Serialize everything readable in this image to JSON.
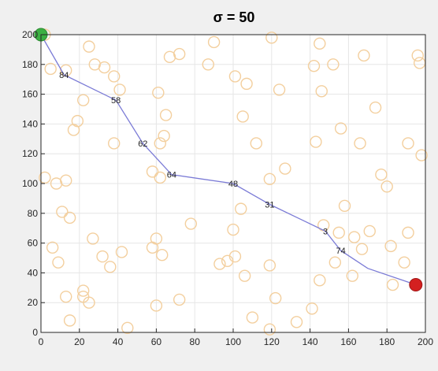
{
  "chart_data": {
    "type": "scatter",
    "title": "σ = 50",
    "xlabel": "",
    "ylabel": "",
    "xlim": [
      0,
      200
    ],
    "ylim": [
      0,
      200
    ],
    "x_ticks": [
      0,
      20,
      40,
      60,
      80,
      100,
      120,
      140,
      160,
      180,
      200
    ],
    "y_ticks": [
      0,
      20,
      40,
      60,
      80,
      100,
      120,
      140,
      160,
      180,
      200
    ],
    "grid": true,
    "colors": {
      "background_points": "#f3cf9e",
      "path_line": "#7b7bd6",
      "start_point": "#3cb043",
      "end_point": "#d42020",
      "grid": "#e6e6e6"
    },
    "background_points": [
      [
        2,
        200
      ],
      [
        5,
        177
      ],
      [
        13,
        176
      ],
      [
        25,
        192
      ],
      [
        28,
        180
      ],
      [
        33,
        178
      ],
      [
        38,
        172
      ],
      [
        41,
        163
      ],
      [
        90,
        195
      ],
      [
        120,
        198
      ],
      [
        145,
        194
      ],
      [
        168,
        186
      ],
      [
        196,
        186
      ],
      [
        197,
        181
      ],
      [
        67,
        185
      ],
      [
        72,
        187
      ],
      [
        87,
        180
      ],
      [
        101,
        172
      ],
      [
        107,
        167
      ],
      [
        124,
        163
      ],
      [
        146,
        162
      ],
      [
        152,
        180
      ],
      [
        142,
        179
      ],
      [
        22,
        156
      ],
      [
        61,
        161
      ],
      [
        105,
        145
      ],
      [
        174,
        151
      ],
      [
        19,
        142
      ],
      [
        17,
        136
      ],
      [
        38,
        127
      ],
      [
        65,
        146
      ],
      [
        64,
        132
      ],
      [
        62,
        127
      ],
      [
        112,
        127
      ],
      [
        143,
        128
      ],
      [
        156,
        137
      ],
      [
        166,
        127
      ],
      [
        191,
        127
      ],
      [
        198,
        119
      ],
      [
        2,
        104
      ],
      [
        8,
        100
      ],
      [
        13,
        102
      ],
      [
        58,
        108
      ],
      [
        62,
        104
      ],
      [
        119,
        103
      ],
      [
        127,
        110
      ],
      [
        177,
        106
      ],
      [
        180,
        98
      ],
      [
        11,
        81
      ],
      [
        15,
        77
      ],
      [
        78,
        73
      ],
      [
        104,
        83
      ],
      [
        147,
        72
      ],
      [
        158,
        85
      ],
      [
        6,
        57
      ],
      [
        9,
        47
      ],
      [
        27,
        63
      ],
      [
        32,
        51
      ],
      [
        36,
        44
      ],
      [
        42,
        54
      ],
      [
        58,
        57
      ],
      [
        60,
        63
      ],
      [
        63,
        52
      ],
      [
        100,
        69
      ],
      [
        93,
        46
      ],
      [
        97,
        48
      ],
      [
        101,
        51
      ],
      [
        106,
        38
      ],
      [
        119,
        45
      ],
      [
        155,
        67
      ],
      [
        163,
        64
      ],
      [
        167,
        56
      ],
      [
        171,
        68
      ],
      [
        182,
        58
      ],
      [
        189,
        47
      ],
      [
        191,
        67
      ],
      [
        22,
        24
      ],
      [
        22,
        28
      ],
      [
        13,
        24
      ],
      [
        15,
        8
      ],
      [
        25,
        20
      ],
      [
        45,
        3
      ],
      [
        60,
        18
      ],
      [
        72,
        22
      ],
      [
        110,
        10
      ],
      [
        122,
        23
      ],
      [
        133,
        7
      ],
      [
        141,
        16
      ],
      [
        145,
        35
      ],
      [
        153,
        47
      ],
      [
        162,
        38
      ],
      [
        183,
        32
      ],
      [
        119,
        2
      ]
    ],
    "path_points": [
      [
        0,
        200
      ],
      [
        12,
        173
      ],
      [
        39,
        156
      ],
      [
        53,
        127
      ],
      [
        68,
        106
      ],
      [
        100,
        100
      ],
      [
        119,
        86
      ],
      [
        148,
        68
      ],
      [
        156,
        55
      ],
      [
        170,
        43
      ],
      [
        195,
        32
      ]
    ],
    "path_labels": [
      {
        "x": 12,
        "y": 173,
        "label": "84"
      },
      {
        "x": 39,
        "y": 156,
        "label": "58"
      },
      {
        "x": 53,
        "y": 127,
        "label": "62"
      },
      {
        "x": 68,
        "y": 106,
        "label": "64"
      },
      {
        "x": 100,
        "y": 100,
        "label": "48"
      },
      {
        "x": 119,
        "y": 86,
        "label": "31"
      },
      {
        "x": 148,
        "y": 68,
        "label": "3"
      },
      {
        "x": 156,
        "y": 55,
        "label": "74"
      }
    ],
    "start_point": [
      0,
      200
    ],
    "end_point": [
      195,
      32
    ]
  }
}
